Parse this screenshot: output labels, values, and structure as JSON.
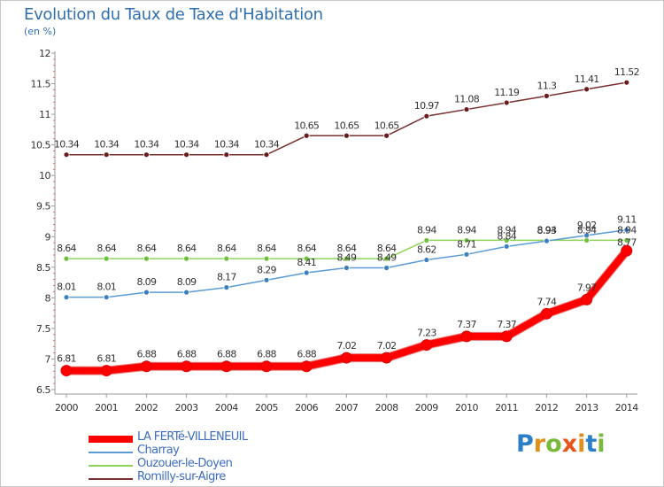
{
  "title": "Evolution du Taux de Taxe d'Habitation",
  "unit": "(en %)",
  "brand": {
    "text": "Proxiti",
    "letter_colors": [
      "#2a7fc8",
      "#e0901a",
      "#7ab83a",
      "#e8541a",
      "#e0901a",
      "#2a7fc8",
      "#7ab83a"
    ]
  },
  "chart_data": {
    "type": "line",
    "x": [
      "2000",
      "2001",
      "2002",
      "2003",
      "2004",
      "2005",
      "2006",
      "2007",
      "2008",
      "2009",
      "2010",
      "2011",
      "2012",
      "2013",
      "2014"
    ],
    "y_ticks": [
      "6.5",
      "7",
      "7.5",
      "8",
      "8.5",
      "9",
      "9.5",
      "10",
      "10.5",
      "11",
      "11.5",
      "12"
    ],
    "ylim": [
      6.5,
      12
    ],
    "grid": false,
    "legend_position": "bottom-left",
    "series": [
      {
        "name": "LA FERTé-VILLENEUIL",
        "color": "#ff0000",
        "marker_color": "#ff0000",
        "width": 8,
        "marker_r": 6,
        "values": [
          6.81,
          6.81,
          6.88,
          6.88,
          6.88,
          6.88,
          6.88,
          7.02,
          7.02,
          7.23,
          7.37,
          7.37,
          7.74,
          7.97,
          8.77
        ],
        "labels": [
          "6.81",
          "6.81",
          "6.88",
          "6.88",
          "6.88",
          "6.88",
          "6.88",
          "7.02",
          "7.02",
          "7.23",
          "7.37",
          "7.37",
          "7.74",
          "7.97",
          ""
        ]
      },
      {
        "name": "Charray",
        "color": "#5b9bd5",
        "marker_color": "#3a7fc0",
        "width": 1.5,
        "marker_r": 3,
        "values": [
          8.01,
          8.01,
          8.09,
          8.09,
          8.17,
          8.29,
          8.41,
          8.49,
          8.49,
          8.62,
          8.71,
          8.84,
          8.93,
          9.02,
          9.11
        ],
        "labels": [
          "8.01",
          "8.01",
          "8.09",
          "8.09",
          "8.17",
          "8.29",
          "8.41",
          "8.49",
          "8.49",
          "8.62",
          "8.71",
          "8.84",
          "8.93",
          "9.02",
          "9.11"
        ]
      },
      {
        "name": "Ouzouer-le-Doyen",
        "color": "#8ed45a",
        "marker_color": "#6cc03a",
        "width": 1.5,
        "marker_r": 3,
        "values": [
          8.64,
          8.64,
          8.64,
          8.64,
          8.64,
          8.64,
          8.64,
          8.64,
          8.64,
          8.94,
          8.94,
          8.94,
          8.94,
          8.94,
          8.94
        ],
        "labels": [
          "8.64",
          "8.64",
          "8.64",
          "8.64",
          "8.64",
          "8.64",
          "8.64",
          "8.64",
          "8.64",
          "8.94",
          "8.94",
          "8.94",
          "8.94",
          "8.94",
          "8.94"
        ]
      },
      {
        "name": "Romilly-sur-Aigre",
        "color": "#7a3030",
        "marker_color": "#6a1a1a",
        "width": 1.5,
        "marker_r": 3,
        "values": [
          10.34,
          10.34,
          10.34,
          10.34,
          10.34,
          10.34,
          10.65,
          10.65,
          10.65,
          10.97,
          11.08,
          11.19,
          11.3,
          11.41,
          11.52
        ],
        "labels": [
          "10.34",
          "10.34",
          "10.34",
          "10.34",
          "10.34",
          "10.34",
          "10.65",
          "10.65",
          "10.65",
          "10.97",
          "11.08",
          "11.19",
          "11.3",
          "11.41",
          "11.52"
        ]
      }
    ],
    "extra_labels": [
      {
        "x": "2014",
        "text": "8.77"
      }
    ]
  },
  "legend_order": [
    0,
    1,
    2,
    3
  ]
}
